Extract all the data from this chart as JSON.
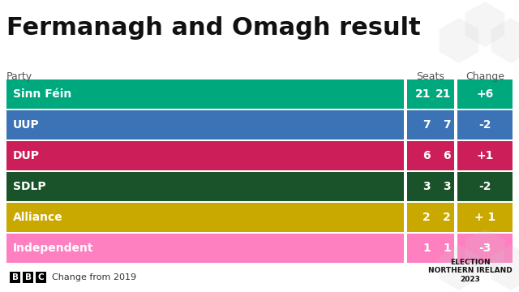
{
  "title": "Fermanagh and Omagh result",
  "parties": [
    "Sinn Féin",
    "UUP",
    "DUP",
    "SDLP",
    "Alliance",
    "Independent"
  ],
  "seats": [
    "21",
    "7",
    "6",
    "3",
    "2",
    "1"
  ],
  "changes": [
    "+6",
    "-2",
    "+1",
    "-2",
    "+ 1",
    "-3"
  ],
  "bar_colors": [
    "#00a87e",
    "#3b73b6",
    "#cc1f5a",
    "#1a5229",
    "#c9a800",
    "#ff80c0"
  ],
  "text_color": "#ffffff",
  "bg_color": "#ffffff",
  "title_fontsize": 22,
  "label_fontsize": 9,
  "cell_fontsize": 10,
  "header_text_color": "#555555"
}
